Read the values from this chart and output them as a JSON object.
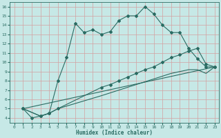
{
  "xlabel": "Humidex (Indice chaleur)",
  "bg_color": "#c6e8e6",
  "grid_color": "#d4a0a0",
  "line_color": "#2a6b62",
  "xlim": [
    -0.5,
    23.5
  ],
  "ylim": [
    3.5,
    16.5
  ],
  "yticks": [
    4,
    5,
    6,
    7,
    8,
    9,
    10,
    11,
    12,
    13,
    14,
    15,
    16
  ],
  "xticks": [
    0,
    1,
    2,
    3,
    4,
    5,
    6,
    7,
    8,
    9,
    10,
    11,
    12,
    13,
    14,
    15,
    16,
    17,
    18,
    19,
    20,
    21,
    22,
    23
  ],
  "line1_x": [
    1,
    2,
    3,
    4,
    5,
    6,
    7,
    8,
    9,
    10,
    11,
    12,
    13,
    14,
    15,
    16,
    17,
    18,
    19,
    20,
    21,
    22,
    23
  ],
  "line1_y": [
    5,
    4,
    4.2,
    4.5,
    8.0,
    10.5,
    14.2,
    13.2,
    13.5,
    13.0,
    13.3,
    14.5,
    15.0,
    15.0,
    16.0,
    15.2,
    14.0,
    13.2,
    13.2,
    11.5,
    10.4,
    9.5,
    9.5
  ],
  "line2_x": [
    1,
    3,
    4,
    5,
    10,
    11,
    12,
    13,
    14,
    15,
    16,
    17,
    18,
    19,
    20,
    21,
    22,
    23
  ],
  "line2_y": [
    5,
    4.2,
    4.5,
    5.0,
    7.3,
    7.6,
    8.0,
    8.4,
    8.8,
    9.2,
    9.5,
    10.0,
    10.5,
    10.8,
    11.2,
    11.5,
    9.8,
    9.5
  ],
  "line3_x": [
    1,
    3,
    4,
    5,
    10,
    11,
    12,
    13,
    14,
    15,
    16,
    17,
    18,
    19,
    20,
    21,
    22,
    23
  ],
  "line3_y": [
    5,
    4.2,
    4.5,
    5.0,
    6.4,
    6.7,
    7.0,
    7.3,
    7.6,
    7.9,
    8.2,
    8.5,
    8.8,
    9.0,
    9.2,
    9.2,
    8.8,
    9.5
  ],
  "line4_x": [
    1,
    23
  ],
  "line4_y": [
    5,
    9.5
  ]
}
